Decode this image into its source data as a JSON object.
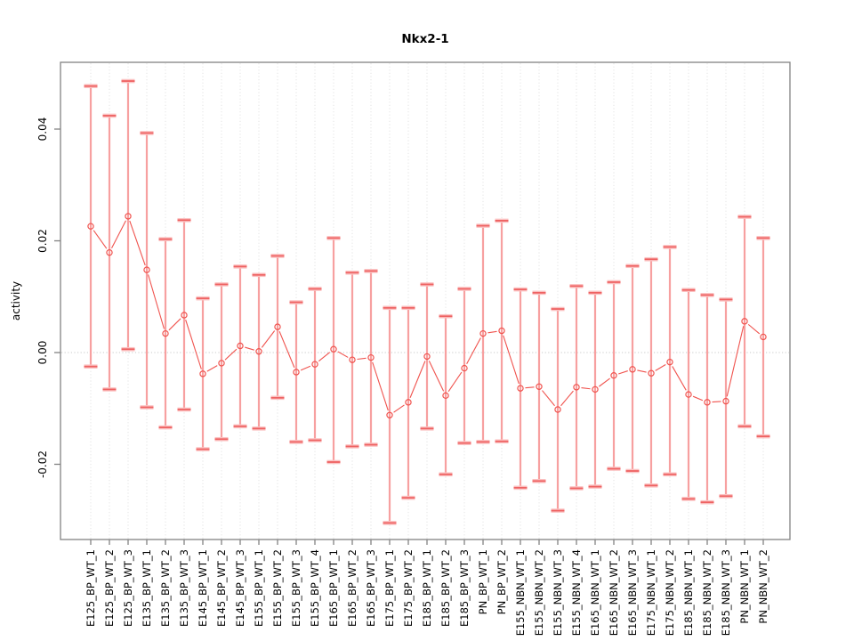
{
  "chart_data": {
    "type": "scatter",
    "subtype": "points-with-error-bars-connected",
    "title": "Nkx2-1",
    "xlabel": "",
    "ylabel": "activity",
    "legend": "none",
    "grid": "vertical dotted gridline per category; horizontal dotted line at y=0",
    "x_tick_rotation": "vertical",
    "y_tick_rotation": "vertical",
    "ylim": [
      -0.0336,
      0.0522
    ],
    "yticks": [
      -0.02,
      0,
      0.02,
      0.04
    ],
    "ytick_labels": [
      "-0.02",
      "0.00",
      "0.02",
      "0.04"
    ],
    "categories": [
      "E125_BP_WT_1",
      "E125_BP_WT_2",
      "E125_BP_WT_3",
      "E135_BP_WT_1",
      "E135_BP_WT_2",
      "E135_BP_WT_3",
      "E145_BP_WT_1",
      "E145_BP_WT_2",
      "E145_BP_WT_3",
      "E155_BP_WT_1",
      "E155_BP_WT_2",
      "E155_BP_WT_3",
      "E155_BP_WT_4",
      "E165_BP_WT_1",
      "E165_BP_WT_2",
      "E165_BP_WT_3",
      "E175_BP_WT_1",
      "E175_BP_WT_2",
      "E185_BP_WT_1",
      "E185_BP_WT_2",
      "E185_BP_WT_3",
      "PN_BP_WT_1",
      "PN_BP_WT_2",
      "E155_NBN_WT_1",
      "E155_NBN_WT_2",
      "E155_NBN_WT_3",
      "E155_NBN_WT_4",
      "E165_NBN_WT_1",
      "E165_NBN_WT_2",
      "E165_NBN_WT_3",
      "E175_NBN_WT_1",
      "E175_NBN_WT_2",
      "E185_NBN_WT_1",
      "E185_NBN_WT_2",
      "E185_NBN_WT_3",
      "PN_NBN_WT_1",
      "PN_NBN_WT_2"
    ],
    "series": [
      {
        "name": "activity",
        "values": [
          0.0226,
          0.0179,
          0.0244,
          0.0148,
          0.0034,
          0.0067,
          -0.0038,
          -0.0019,
          0.0012,
          0.0002,
          0.0046,
          -0.0035,
          -0.0021,
          0.0006,
          -0.0013,
          -0.0009,
          -0.0112,
          -0.0089,
          -0.0007,
          -0.0077,
          -0.0028,
          0.0034,
          0.0039,
          -0.0064,
          -0.0061,
          -0.0102,
          -0.0062,
          -0.0066,
          -0.0041,
          -0.003,
          -0.0037,
          -0.0017,
          -0.0075,
          -0.0089,
          -0.0087,
          0.0056,
          0.0028
        ],
        "lower": [
          -0.0025,
          -0.0066,
          0.0006,
          -0.0098,
          -0.0134,
          -0.0102,
          -0.0173,
          -0.0155,
          -0.0132,
          -0.0136,
          -0.0081,
          -0.016,
          -0.0157,
          -0.0196,
          -0.0168,
          -0.0165,
          -0.0305,
          -0.026,
          -0.0136,
          -0.0218,
          -0.0162,
          -0.016,
          -0.0159,
          -0.0242,
          -0.023,
          -0.0283,
          -0.0243,
          -0.024,
          -0.0208,
          -0.0212,
          -0.0238,
          -0.0218,
          -0.0262,
          -0.0268,
          -0.0257,
          -0.0132,
          -0.015
        ],
        "upper": [
          0.0477,
          0.0424,
          0.0486,
          0.0393,
          0.0203,
          0.0237,
          0.0097,
          0.0122,
          0.0154,
          0.0139,
          0.0173,
          0.009,
          0.0114,
          0.0205,
          0.0143,
          0.0146,
          0.008,
          0.008,
          0.0122,
          0.0065,
          0.0114,
          0.0227,
          0.0236,
          0.0113,
          0.0107,
          0.0078,
          0.0119,
          0.0107,
          0.0126,
          0.0155,
          0.0167,
          0.0189,
          0.0112,
          0.0103,
          0.0095,
          0.0243,
          0.0205
        ]
      }
    ],
    "colors": {
      "point": "#f0534e",
      "connector_line": "#f0534e",
      "error_bar": "#f7a0a0",
      "error_cap_core": "#ee6262",
      "error_cap_halo": "#fbc2c2",
      "gridline": "#e3e3e3",
      "zero_line": "#c9c9c9",
      "axis_box": "#828282",
      "text": "#000000"
    }
  }
}
